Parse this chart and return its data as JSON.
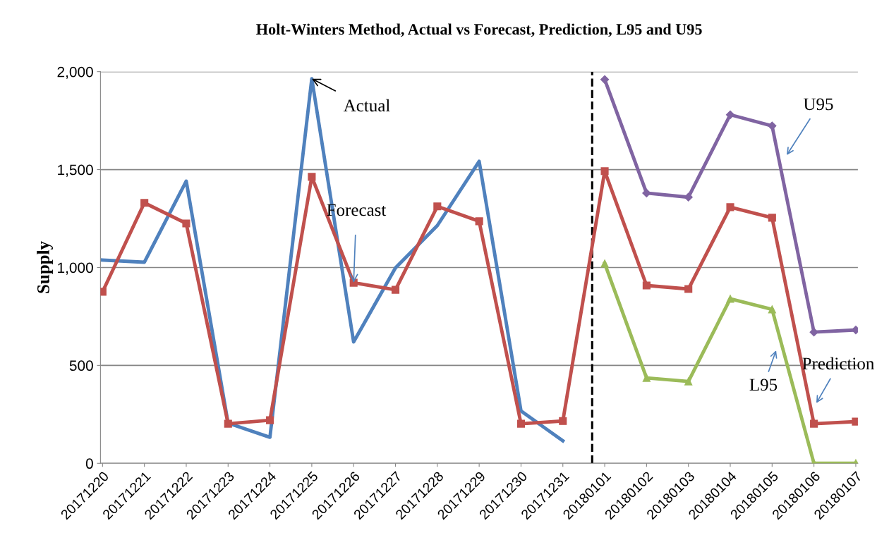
{
  "chart_data": {
    "type": "line",
    "title": "Holt-Winters Method, Actual vs Forecast, Prediction, L95 and U95",
    "ylabel": "Supply",
    "categories": [
      "20171220",
      "20171221",
      "20171222",
      "20171223",
      "20171224",
      "20171225",
      "20171226",
      "20171227",
      "20171228",
      "20171229",
      "20171230",
      "20171231",
      "20180101",
      "20180102",
      "20180103",
      "20180104",
      "20180105",
      "20180106",
      "20180107"
    ],
    "series": [
      {
        "color": "#4f81bd",
        "marker": "none",
        "values": [
          1038,
          1027,
          1441,
          205,
          133,
          1964,
          620,
          998,
          1214,
          1542,
          267,
          115,
          null,
          null,
          null,
          null,
          null,
          null,
          null
        ]
      },
      {
        "color": "#c0504d",
        "marker": "square",
        "values": [
          876,
          1330,
          1225,
          202,
          220,
          1463,
          922,
          886,
          1312,
          1236,
          202,
          216,
          1492,
          908,
          890,
          1308,
          1254,
          202,
          213
        ]
      },
      {
        "color": "#8064a2",
        "marker": "diamond",
        "values": [
          null,
          null,
          null,
          null,
          null,
          null,
          null,
          null,
          null,
          null,
          null,
          null,
          1960,
          1380,
          1359,
          1780,
          1723,
          670,
          681
        ]
      },
      {
        "color": "#9bbb59",
        "marker": "triangle",
        "values": [
          null,
          null,
          null,
          null,
          null,
          null,
          null,
          null,
          null,
          null,
          null,
          null,
          1020,
          436,
          418,
          840,
          786,
          0,
          0
        ]
      }
    ],
    "ylim": [
      0,
      2000
    ],
    "yticks": [
      {
        "value": 0,
        "label": "0"
      },
      {
        "value": 500,
        "label": "500"
      },
      {
        "value": 1000,
        "label": "1,000"
      },
      {
        "value": 1500,
        "label": "1,500"
      },
      {
        "value": 2000,
        "label": "2,000"
      }
    ],
    "grid": "y",
    "line_style": "solid",
    "ref_lines": [
      {
        "axis": "x",
        "value": "20180101",
        "color": "#000000",
        "line_style": "dashed"
      }
    ],
    "annotations": [
      {
        "text": "Actual",
        "x": "20171225",
        "y": 1964
      },
      {
        "text": "Forecast",
        "x": "20171226",
        "y": 922
      },
      "U95",
      "L95",
      "Prediction"
    ]
  }
}
